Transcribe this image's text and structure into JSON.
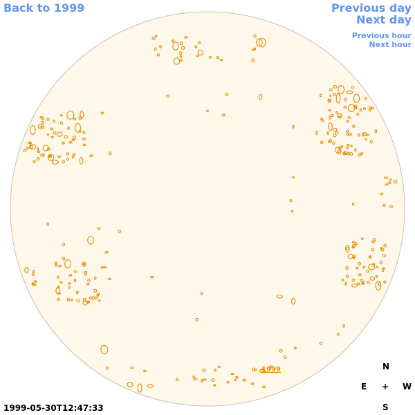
{
  "nav": {
    "back": "Back to 1999",
    "previous_day": "Previous day",
    "next_day": "Next day",
    "previous_hour": "Previous hour",
    "next_hour": "Next hour"
  },
  "disk_label": "1999",
  "timestamp": "1999-05-30T12:47:33",
  "compass": {
    "north": "N",
    "east": "E",
    "center": "+",
    "west": "W",
    "south": "S"
  }
}
